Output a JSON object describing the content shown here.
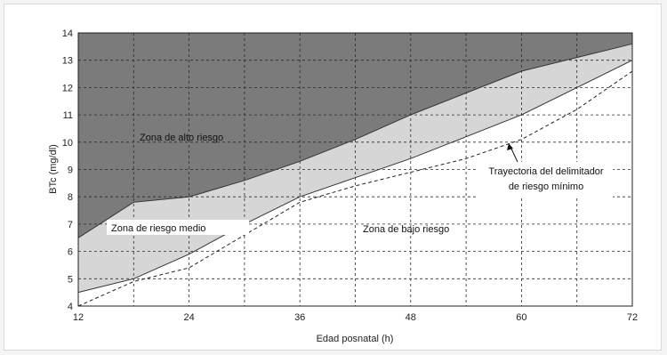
{
  "chart_data": {
    "type": "area",
    "xlabel": "Edad posnatal (h)",
    "ylabel": "BTc (mg/dl)",
    "xlim": [
      12,
      72
    ],
    "ylim": [
      4,
      14
    ],
    "x_ticks": [
      "12",
      "24",
      "36",
      "48",
      "60",
      "72"
    ],
    "y_ticks": [
      "4",
      "5",
      "6",
      "7",
      "8",
      "9",
      "10",
      "11",
      "12",
      "13",
      "14"
    ],
    "grid": true,
    "series": [
      {
        "name": "high-boundary",
        "x": [
          12,
          18,
          24,
          30,
          36,
          42,
          48,
          54,
          60,
          66,
          72
        ],
        "y": [
          6.5,
          7.8,
          8.0,
          8.6,
          9.3,
          10.1,
          11.0,
          11.8,
          12.6,
          13.1,
          13.6
        ]
      },
      {
        "name": "low-boundary",
        "x": [
          12,
          18,
          24,
          30,
          36,
          42,
          48,
          54,
          60,
          66,
          72
        ],
        "y": [
          4.5,
          5.0,
          5.9,
          7.0,
          8.0,
          8.7,
          9.4,
          10.2,
          11.0,
          12.0,
          13.0
        ]
      },
      {
        "name": "Trayectoria del delimitador de riesgo mínimo",
        "x": [
          12,
          18,
          24,
          30,
          36,
          42,
          48,
          54,
          60,
          66,
          72
        ],
        "y": [
          4.0,
          4.9,
          5.4,
          6.6,
          7.8,
          8.4,
          8.9,
          9.4,
          10.1,
          11.2,
          12.6
        ]
      }
    ],
    "labels": {
      "high": "Zona de alto riesgo",
      "medium": "Zona de riesgo medio",
      "low": "Zona de bajo riesgo",
      "trajectory_line1": "Trayectoria del delimitador",
      "trajectory_line2": "de riesgo mínimo"
    },
    "colors": {
      "high_zone": "#7b7b7b",
      "medium_zone": "#d6d6d6",
      "low_zone": "#ffffff",
      "boundary": "#333333",
      "grid": "#2a2a2a"
    }
  }
}
